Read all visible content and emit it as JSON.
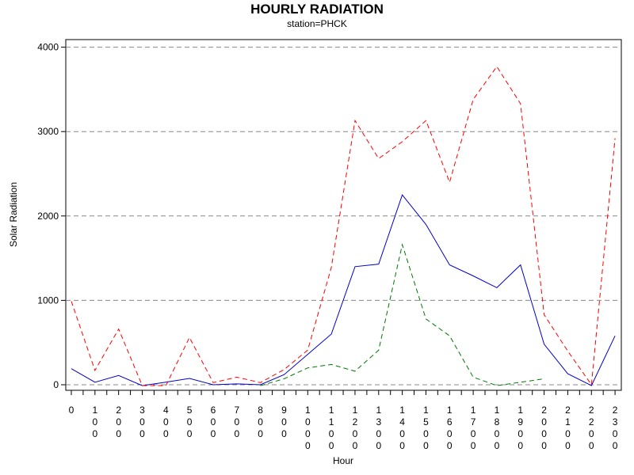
{
  "chart_data": {
    "type": "line",
    "title": "HOURLY RADIATION",
    "subtitle": "station=PHCK",
    "xlabel": "Hour",
    "ylabel": "Solar Radiation",
    "x": [
      0,
      1,
      2,
      3,
      4,
      5,
      6,
      7,
      8,
      9,
      10,
      11,
      12,
      13,
      14,
      15,
      16,
      17,
      18,
      19,
      20,
      21,
      22,
      23
    ],
    "x_tick_labels": [
      "0",
      "100",
      "200",
      "300",
      "400",
      "500",
      "600",
      "700",
      "800",
      "900",
      "1000",
      "1100",
      "1200",
      "1300",
      "1400",
      "1500",
      "1600",
      "1700",
      "1800",
      "1900",
      "2000",
      "2100",
      "2200",
      "2300"
    ],
    "y_ticks": [
      0,
      1000,
      2000,
      3000,
      4000
    ],
    "ylim": [
      -75,
      4075
    ],
    "xlim": [
      0,
      23
    ],
    "grid": "horizontal dashed",
    "series": [
      {
        "style": "solid",
        "color": "#0000cc",
        "values": [
          190,
          30,
          110,
          -10,
          30,
          75,
          0,
          10,
          0,
          120,
          360,
          600,
          1400,
          1430,
          2250,
          1900,
          1420,
          1290,
          1150,
          1420,
          480,
          130,
          -10,
          580
        ]
      },
      {
        "style": "dashed",
        "color": "#ff0000",
        "values": [
          990,
          170,
          660,
          -10,
          -10,
          560,
          25,
          90,
          25,
          180,
          410,
          1390,
          3130,
          2680,
          2880,
          3130,
          2400,
          3380,
          3770,
          3330,
          830,
          400,
          0,
          2920
        ]
      },
      {
        "style": "dashed",
        "color": "#007700",
        "values": [
          null,
          null,
          null,
          null,
          null,
          null,
          null,
          null,
          -10,
          70,
          200,
          240,
          160,
          410,
          1660,
          780,
          580,
          90,
          -10,
          30,
          70,
          null,
          null,
          null
        ]
      }
    ]
  }
}
